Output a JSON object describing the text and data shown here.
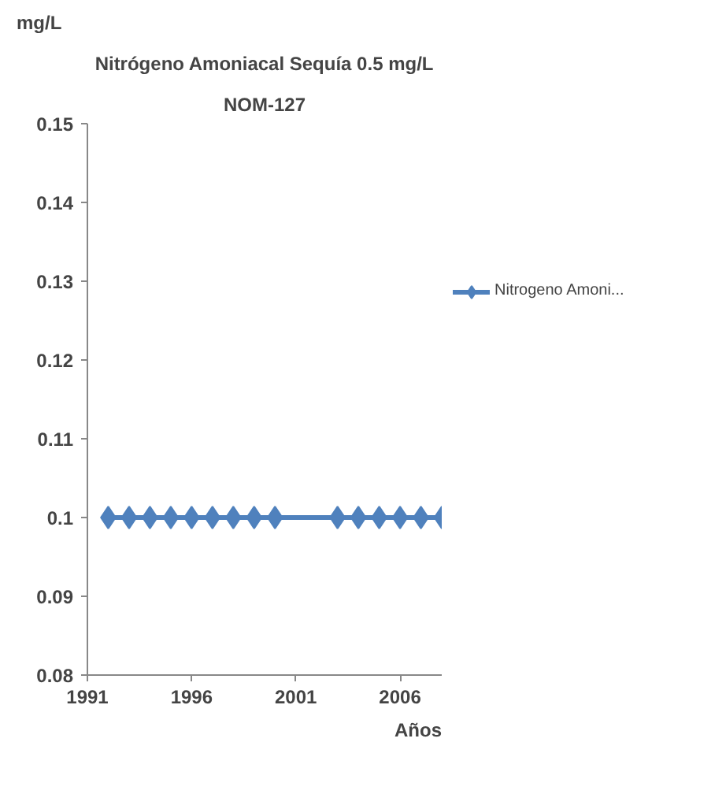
{
  "chart_data": {
    "type": "line",
    "title": "Nitrógeno Amoniacal Sequía 0.5 mg/L",
    "subtitle": "NOM-127",
    "xlabel": "Años",
    "ylabel": "mg/L",
    "x": [
      1992,
      1993,
      1994,
      1995,
      1996,
      1997,
      1998,
      1999,
      2000,
      2003,
      2004,
      2005,
      2006,
      2007,
      2008
    ],
    "series": [
      {
        "name": "Nitrogeno Amoni...",
        "color": "#4f81bd",
        "values": [
          0.1,
          0.1,
          0.1,
          0.1,
          0.1,
          0.1,
          0.1,
          0.1,
          0.1,
          0.1,
          0.1,
          0.1,
          0.1,
          0.1,
          0.1
        ]
      }
    ],
    "xlim": [
      1991,
      2008
    ],
    "xticks": [
      1991,
      1996,
      2001,
      2006
    ],
    "ylim": [
      0.08,
      0.15
    ],
    "yticks": [
      0.08,
      0.09,
      {
        "value": 0.1,
        "label": "0.1"
      },
      0.11,
      0.12,
      0.13,
      0.14,
      0.15
    ],
    "grid": false,
    "legend": "right",
    "marker": "diamond",
    "line_style": "solid"
  }
}
